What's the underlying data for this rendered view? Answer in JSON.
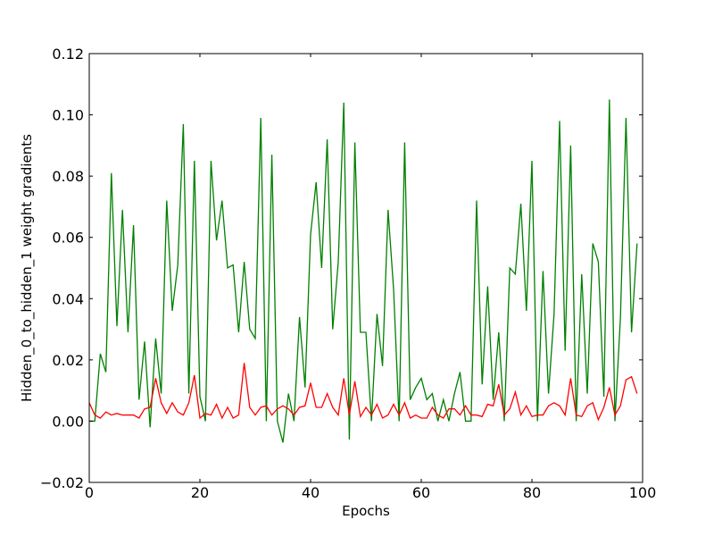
{
  "chart_data": {
    "type": "line",
    "title": "",
    "xlabel": "Epochs",
    "ylabel": "Hidden_0_to_hidden_1 weight gradients",
    "xlim": [
      0,
      100
    ],
    "ylim": [
      -0.02,
      0.12
    ],
    "xticks": [
      0,
      20,
      40,
      60,
      80,
      100
    ],
    "xtick_labels": [
      "0",
      "20",
      "40",
      "60",
      "80",
      "100"
    ],
    "yticks": [
      -0.02,
      0.0,
      0.02,
      0.04,
      0.06,
      0.08,
      0.1,
      0.12
    ],
    "ytick_labels": [
      "−0.02",
      "0.00",
      "0.02",
      "0.04",
      "0.06",
      "0.08",
      "0.10",
      "0.12"
    ],
    "grid": false,
    "legend": "none",
    "series": [
      {
        "color": "#008000",
        "x": [
          0,
          1,
          2,
          3,
          4,
          5,
          6,
          7,
          8,
          9,
          10,
          11,
          12,
          13,
          14,
          15,
          16,
          17,
          18,
          19,
          20,
          21,
          22,
          23,
          24,
          25,
          26,
          27,
          28,
          29,
          30,
          31,
          32,
          33,
          34,
          35,
          36,
          37,
          38,
          39,
          40,
          41,
          42,
          43,
          44,
          45,
          46,
          47,
          48,
          49,
          50,
          51,
          52,
          53,
          54,
          55,
          56,
          57,
          58,
          59,
          60,
          61,
          62,
          63,
          64,
          65,
          66,
          67,
          68,
          69,
          70,
          71,
          72,
          73,
          74,
          75,
          76,
          77,
          78,
          79,
          80,
          81,
          82,
          83,
          84,
          85,
          86,
          87,
          88,
          89,
          90,
          91,
          92,
          93,
          94,
          95,
          96,
          97,
          98,
          99
        ],
        "y": [
          0.0,
          0.0,
          0.022,
          0.016,
          0.081,
          0.031,
          0.069,
          0.029,
          0.064,
          0.007,
          0.026,
          -0.002,
          0.027,
          0.009,
          0.072,
          0.036,
          0.051,
          0.097,
          0.009,
          0.085,
          0.008,
          0.0,
          0.085,
          0.059,
          0.072,
          0.05,
          0.051,
          0.029,
          0.052,
          0.03,
          0.027,
          0.099,
          0.0,
          0.087,
          0.0,
          -0.007,
          0.009,
          0.0,
          0.034,
          0.011,
          0.061,
          0.078,
          0.05,
          0.092,
          0.03,
          0.052,
          0.104,
          -0.006,
          0.091,
          0.029,
          0.029,
          0.0,
          0.035,
          0.018,
          0.069,
          0.043,
          0.0,
          0.091,
          0.007,
          0.011,
          0.014,
          0.007,
          0.009,
          0.0,
          0.007,
          0.0,
          0.009,
          0.016,
          0.0,
          0.0,
          0.072,
          0.012,
          0.044,
          0.007,
          0.029,
          0.0,
          0.05,
          0.048,
          0.071,
          0.036,
          0.085,
          0.0,
          0.049,
          0.009,
          0.035,
          0.098,
          0.023,
          0.09,
          0.0,
          0.048,
          0.009,
          0.058,
          0.052,
          0.008,
          0.105,
          0.0,
          0.034,
          0.099,
          0.029,
          0.058
        ]
      },
      {
        "color": "#ff0000",
        "x": [
          0,
          1,
          2,
          3,
          4,
          5,
          6,
          7,
          8,
          9,
          10,
          11,
          12,
          13,
          14,
          15,
          16,
          17,
          18,
          19,
          20,
          21,
          22,
          23,
          24,
          25,
          26,
          27,
          28,
          29,
          30,
          31,
          32,
          33,
          34,
          35,
          36,
          37,
          38,
          39,
          40,
          41,
          42,
          43,
          44,
          45,
          46,
          47,
          48,
          49,
          50,
          51,
          52,
          53,
          54,
          55,
          56,
          57,
          58,
          59,
          60,
          61,
          62,
          63,
          64,
          65,
          66,
          67,
          68,
          69,
          70,
          71,
          72,
          73,
          74,
          75,
          76,
          77,
          78,
          79,
          80,
          81,
          82,
          83,
          84,
          85,
          86,
          87,
          88,
          89,
          90,
          91,
          92,
          93,
          94,
          95,
          96,
          97,
          98,
          99
        ],
        "y": [
          0.006,
          0.002,
          0.001,
          0.003,
          0.002,
          0.0025,
          0.002,
          0.002,
          0.002,
          0.001,
          0.004,
          0.0045,
          0.014,
          0.006,
          0.0025,
          0.006,
          0.003,
          0.002,
          0.006,
          0.015,
          0.001,
          0.0025,
          0.002,
          0.0055,
          0.001,
          0.0045,
          0.001,
          0.002,
          0.019,
          0.0045,
          0.002,
          0.0045,
          0.005,
          0.002,
          0.004,
          0.005,
          0.004,
          0.002,
          0.0045,
          0.005,
          0.0125,
          0.0045,
          0.0045,
          0.009,
          0.0045,
          0.002,
          0.014,
          0.002,
          0.013,
          0.0015,
          0.0045,
          0.002,
          0.0055,
          0.001,
          0.002,
          0.0055,
          0.002,
          0.006,
          0.001,
          0.002,
          0.001,
          0.001,
          0.0045,
          0.002,
          0.001,
          0.004,
          0.004,
          0.002,
          0.005,
          0.002,
          0.002,
          0.0015,
          0.0055,
          0.005,
          0.012,
          0.002,
          0.004,
          0.0095,
          0.002,
          0.005,
          0.0015,
          0.002,
          0.002,
          0.005,
          0.006,
          0.005,
          0.002,
          0.014,
          0.002,
          0.0015,
          0.005,
          0.006,
          0.0005,
          0.0045,
          0.011,
          0.002,
          0.005,
          0.0135,
          0.0145,
          0.009
        ]
      }
    ]
  }
}
